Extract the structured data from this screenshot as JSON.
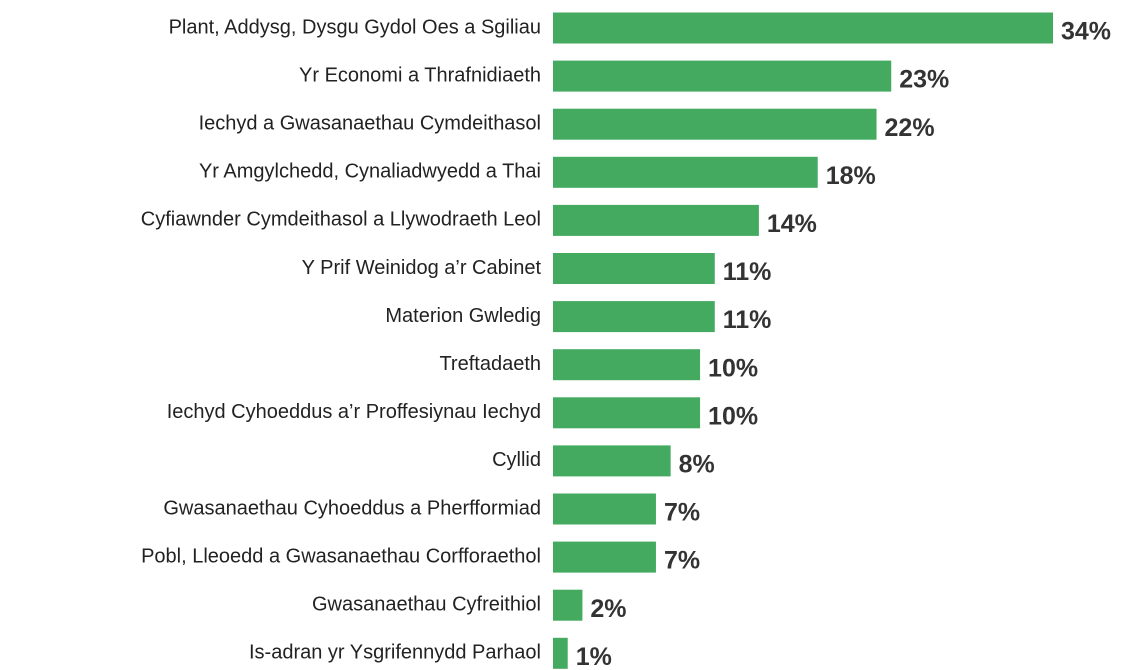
{
  "chart_data": {
    "type": "hbar",
    "categories": [
      "Plant, Addysg, Dysgu Gydol Oes a Sgiliau",
      "Yr Economi a Thrafnidiaeth",
      "Iechyd a Gwasanaethau Cymdeithasol",
      "Yr Amgylchedd, Cynaliadwyedd a Thai",
      "Cyfiawnder Cymdeithasol a Llywodraeth Leol",
      "Y Prif Weinidog a’r Cabinet",
      "Materion Gwledig",
      "Treftadaeth",
      "Iechyd Cyhoeddus a’r Proffesiynau Iechyd",
      "Cyllid",
      "Gwasanaethau Cyhoeddus a Pherfformiad",
      "Pobl, Lleoedd a Gwasanaethau Corfforaethol",
      "Gwasanaethau Cyfreithiol",
      "Is-adran yr Ysgrifennydd Parhaol"
    ],
    "values": [
      34,
      23,
      22,
      18,
      14,
      11,
      11,
      10,
      10,
      8,
      7,
      7,
      2,
      1
    ],
    "value_labels": [
      "34%",
      "23%",
      "22%",
      "18%",
      "14%",
      "11%",
      "11%",
      "10%",
      "10%",
      "8%",
      "7%",
      "7%",
      "2%",
      "1%"
    ],
    "color": "#44aa5f"
  }
}
